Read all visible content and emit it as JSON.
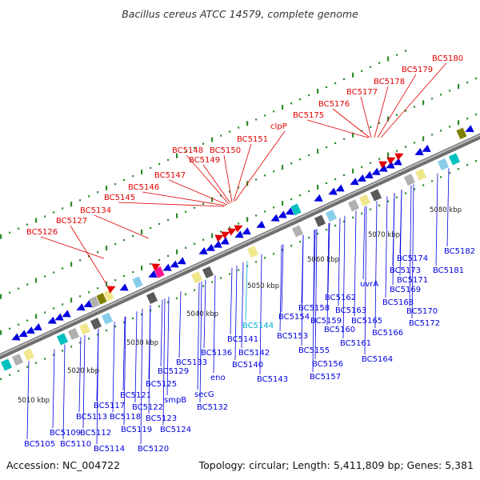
{
  "title": "Bacillus cereus ATCC 14579, complete genome",
  "accession": "Accession: NC_004722",
  "summary": "Topology: circular; Length: 5,411,809 bp; Genes: 5,381",
  "colors": {
    "backbone": "#9a9a9a",
    "forward_gene": "#e00000",
    "reverse_gene": "#0000e0",
    "tick": "#2e8b2e",
    "highlight_label": "#00b0d0"
  },
  "scale_labels": [
    "5010 kbp",
    "5020 kbp",
    "5030 kbp",
    "5040 kbp",
    "5050 kbp",
    "5060 kbp",
    "5070 kbp",
    "5080 kbp"
  ],
  "red_labels": [
    "BC5126",
    "BC5127",
    "BC5134",
    "BC5145",
    "BC5146",
    "BC5147",
    "BC5148",
    "BC5149",
    "BC5150",
    "BC5151",
    "clpP",
    "BC5175",
    "BC5176",
    "BC5177",
    "BC5178",
    "BC5179",
    "BC5180"
  ],
  "blue_labels": [
    "BC5105",
    "BC5109",
    "BC5110",
    "BC5112",
    "BC5113",
    "BC5114",
    "BC5117",
    "BC5118",
    "BC5119",
    "BC5120",
    "BC5121",
    "BC5122",
    "BC5123",
    "BC5124",
    "BC5125",
    "smpB",
    "BC5129",
    "BC5133",
    "secG",
    "BC5132",
    "eno",
    "BC5136",
    "BC5141",
    "BC5142",
    "BC5140",
    "BC5143",
    "BC5144",
    "BC5153",
    "BC5154",
    "BC5155",
    "BC5156",
    "BC5157",
    "BC5158",
    "BC5159",
    "BC5160",
    "BC5161",
    "BC5162",
    "BC5163",
    "uvrA",
    "BC5164",
    "BC5165",
    "BC5166",
    "BC5168",
    "BC5169",
    "BC5170",
    "BC5171",
    "BC5172",
    "BC5173",
    "BC5174",
    "BC5181",
    "BC5182"
  ]
}
